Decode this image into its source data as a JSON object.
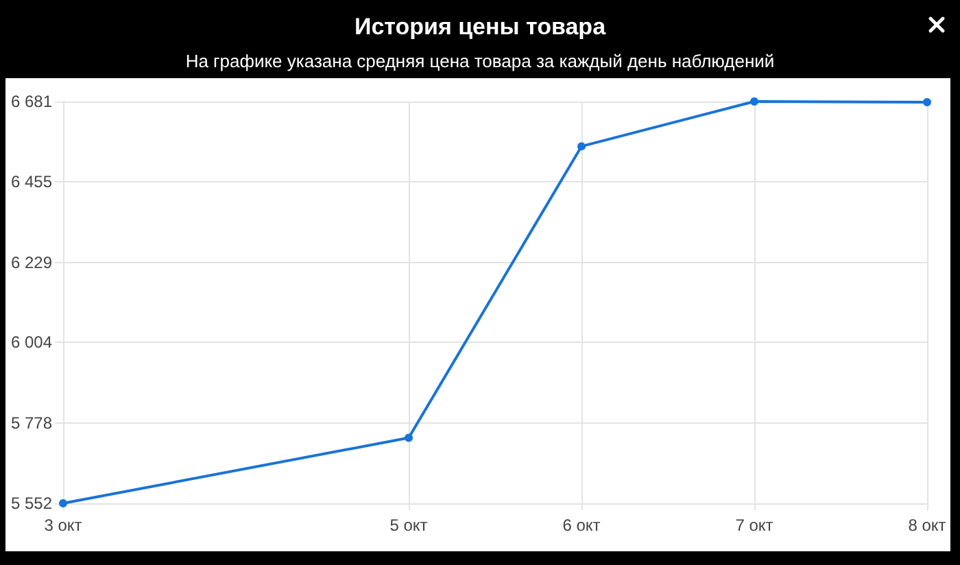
{
  "chart_data": {
    "type": "line",
    "title": "История цены товара",
    "subtitle": "На графике указана средняя цена товара за каждый день наблюдений",
    "x": [
      "--10-03",
      "--10-05",
      "--10-06",
      "--10-07",
      "--10-08"
    ],
    "series": [
      {
        "color": "#1a73d8",
        "values": [
          5552,
          5736,
          6555,
          6681,
          6679
        ]
      }
    ],
    "xlim": [
      "--10-03",
      "--10-08"
    ],
    "xticks": [
      {
        "value": "--10-03",
        "label": "3 окт"
      },
      {
        "value": "--10-05",
        "label": "5 окт"
      },
      {
        "value": "--10-06",
        "label": "6 окт"
      },
      {
        "value": "--10-07",
        "label": "7 окт"
      },
      {
        "value": "--10-08",
        "label": "8 окт"
      }
    ],
    "ylim": [
      5552,
      6681
    ],
    "yticks": [
      {
        "value": 5552,
        "label": "5 552"
      },
      {
        "value": 5778,
        "label": "5 778"
      },
      {
        "value": 6004,
        "label": "6 004"
      },
      {
        "value": 6229,
        "label": "6 229"
      },
      {
        "value": 6455,
        "label": "6 455"
      },
      {
        "value": 6681,
        "label": "6 681"
      }
    ],
    "grid": true,
    "marker": "circle",
    "line_style": "solid"
  }
}
